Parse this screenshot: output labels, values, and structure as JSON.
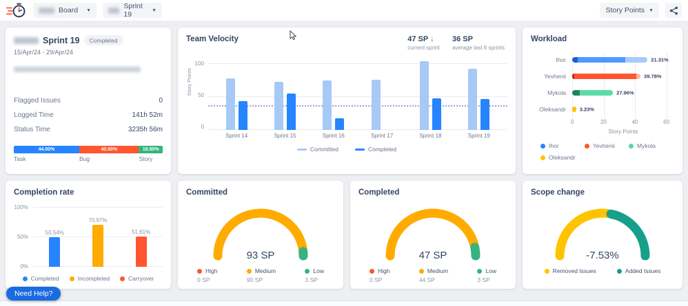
{
  "topbar": {
    "board_label": "Board",
    "sprint_label": "Sprint 19",
    "unit_label": "Story Points"
  },
  "sprint_card": {
    "title": "Sprint 19",
    "badge": "Completed",
    "date_range": "15/Apr/24 - 29/Apr/24",
    "stats": [
      {
        "label": "Flagged Issues",
        "value": "0"
      },
      {
        "label": "Logged Time",
        "value": "141h 52m"
      },
      {
        "label": "Status Time",
        "value": "3235h 56m"
      }
    ],
    "issue_types": [
      {
        "label": "Task",
        "pct_label": "44.00%",
        "value": 44,
        "color": "#2684FF"
      },
      {
        "label": "Bug",
        "pct_label": "40.00%",
        "value": 40,
        "color": "#FF5630"
      },
      {
        "label": "Story",
        "pct_label": "16.00%",
        "value": 16,
        "color": "#36B37E"
      }
    ]
  },
  "velocity_header": {
    "title": "Team Velocity",
    "current_value": "47 SP",
    "current_arrow": "↓",
    "current_caption": "current sprint",
    "average_value": "36 SP",
    "average_caption": "average last 6 sprints"
  },
  "need_help_label": "Need Help?",
  "chart_data": [
    {
      "id": "team_velocity",
      "type": "bar",
      "title": "Team Velocity",
      "categories": [
        "Sprint 14",
        "Sprint 15",
        "Sprint 16",
        "Sprint 17",
        "Sprint 18",
        "Sprint 19"
      ],
      "series": [
        {
          "name": "Committed",
          "color": "#A6C9F5",
          "values": [
            78,
            73,
            75,
            76,
            105,
            93
          ]
        },
        {
          "name": "Completed",
          "color": "#2684FF",
          "values": [
            44,
            56,
            18,
            0,
            48,
            47
          ]
        }
      ],
      "ylabel": "Story Points",
      "yticks": [
        0,
        50,
        100
      ],
      "ylim": [
        0,
        112
      ],
      "average_line": 36,
      "grid": true,
      "legend_position": "bottom"
    },
    {
      "id": "workload",
      "type": "bar-horizontal-stacked",
      "title": "Workload",
      "categories": [
        "Ihor",
        "Yevhenii",
        "Mykola",
        "Oleksandr"
      ],
      "rows": [
        {
          "name": "Ihor",
          "label": "21.31%",
          "segments": [
            {
              "value": 3.5,
              "color": "#1D5FD0"
            },
            {
              "value": 30.5,
              "color": "#4C9AFF"
            },
            {
              "value": 14,
              "color": "#A7CBF9"
            }
          ]
        },
        {
          "name": "Yevhenii",
          "label": "39.78%",
          "segments": [
            {
              "value": 1.5,
              "color": "#BF2600"
            },
            {
              "value": 39.5,
              "color": "#FF5630"
            },
            {
              "value": 2.5,
              "color": "#FFB3A0"
            }
          ]
        },
        {
          "name": "Mykola",
          "label": "27.96%",
          "segments": [
            {
              "value": 5,
              "color": "#1F845A"
            },
            {
              "value": 21,
              "color": "#5CDBA7"
            }
          ]
        },
        {
          "name": "Oleksandr",
          "label": "3.23%",
          "segments": [
            {
              "value": 2.5,
              "color": "#FFC400"
            }
          ]
        }
      ],
      "xticks": [
        0,
        20,
        40,
        60
      ],
      "xlim": [
        0,
        65
      ],
      "xlabel": "Story Points",
      "legend": [
        {
          "name": "Ihor",
          "color": "#2684FF"
        },
        {
          "name": "Yevhenii",
          "color": "#FF5630"
        },
        {
          "name": "Mykola",
          "color": "#57D9A3"
        },
        {
          "name": "Oleksandr",
          "color": "#FFC400"
        }
      ]
    },
    {
      "id": "completion_rate",
      "type": "bar",
      "title": "Completion rate",
      "categories": [
        "Completed",
        "Incompleted",
        "Carryover"
      ],
      "values": [
        50.54,
        70.97,
        51.61
      ],
      "labels": [
        "50.54%",
        "70.97%",
        "51.61%"
      ],
      "colors": [
        "#2684FF",
        "#FFAB00",
        "#FF5630"
      ],
      "yticks": [
        "0%",
        "50%",
        "100%"
      ],
      "ylim": [
        0,
        100
      ],
      "grid": true,
      "legend_position": "bottom"
    },
    {
      "id": "committed_gauge",
      "type": "gauge",
      "title": "Committed",
      "center_label": "93 SP",
      "segments": [
        {
          "name": "High",
          "value": 0,
          "sp": "0 SP",
          "color": "#FF5630"
        },
        {
          "name": "Medium",
          "value": 90,
          "sp": "90 SP",
          "color": "#FFAB00"
        },
        {
          "name": "Low",
          "value": 3,
          "sp": "3 SP",
          "color": "#36B37E"
        }
      ]
    },
    {
      "id": "completed_gauge",
      "type": "gauge",
      "title": "Completed",
      "center_label": "47 SP",
      "segments": [
        {
          "name": "High",
          "value": 0,
          "sp": "0 SP",
          "color": "#FF5630"
        },
        {
          "name": "Medium",
          "value": 44,
          "sp": "44 SP",
          "color": "#FFAB00"
        },
        {
          "name": "Low",
          "value": 3,
          "sp": "3 SP",
          "color": "#36B37E"
        }
      ]
    },
    {
      "id": "scope_gauge",
      "type": "gauge",
      "title": "Scope change",
      "center_label": "-7.53%",
      "gap_degrees": 5,
      "segments": [
        {
          "name": "Removed Issues",
          "value": 55,
          "color": "#FFC400"
        },
        {
          "name": "Added Issues",
          "value": 45,
          "color": "#16A08C"
        }
      ]
    }
  ]
}
